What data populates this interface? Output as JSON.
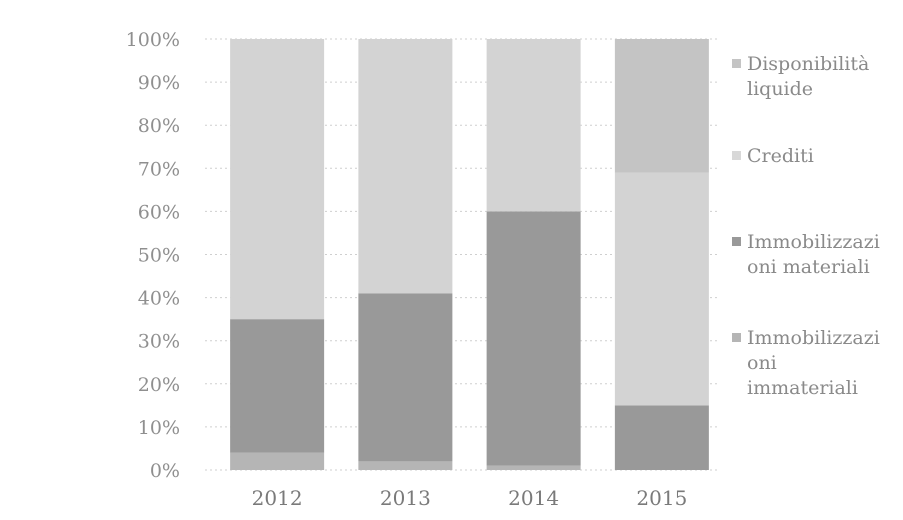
{
  "chart_data": {
    "type": "bar",
    "stacked": true,
    "percent": true,
    "categories": [
      "2012",
      "2013",
      "2014",
      "2015"
    ],
    "series": [
      {
        "name": "Immobilizzazioni immateriali",
        "color": "#b5b5b5",
        "values": [
          4,
          2,
          1,
          0
        ]
      },
      {
        "name": "Immobilizzazioni materiali",
        "color": "#999999",
        "values": [
          31,
          39,
          59,
          15
        ]
      },
      {
        "name": "Crediti",
        "color": "#d3d3d3",
        "values": [
          65,
          59,
          40,
          54
        ]
      },
      {
        "name": "Disponibilità liquide",
        "color": "#c4c4c4",
        "values": [
          0,
          0,
          0,
          31
        ]
      }
    ],
    "y_ticks": [
      "0%",
      "10%",
      "20%",
      "30%",
      "40%",
      "50%",
      "60%",
      "70%",
      "80%",
      "90%",
      "100%"
    ],
    "ylim": [
      0,
      100
    ],
    "grid": true,
    "legend_position": "right",
    "legend": [
      {
        "lines": [
          "Disponibilità",
          "liquide"
        ],
        "color": "#c4c4c4"
      },
      {
        "lines": [
          "Crediti"
        ],
        "color": "#d8d8d8"
      },
      {
        "lines": [
          "Immobilizzazi",
          "oni materiali"
        ],
        "color": "#999999"
      },
      {
        "lines": [
          "Immobilizzazi",
          "oni",
          "immateriali"
        ],
        "color": "#b5b5b5"
      }
    ]
  }
}
